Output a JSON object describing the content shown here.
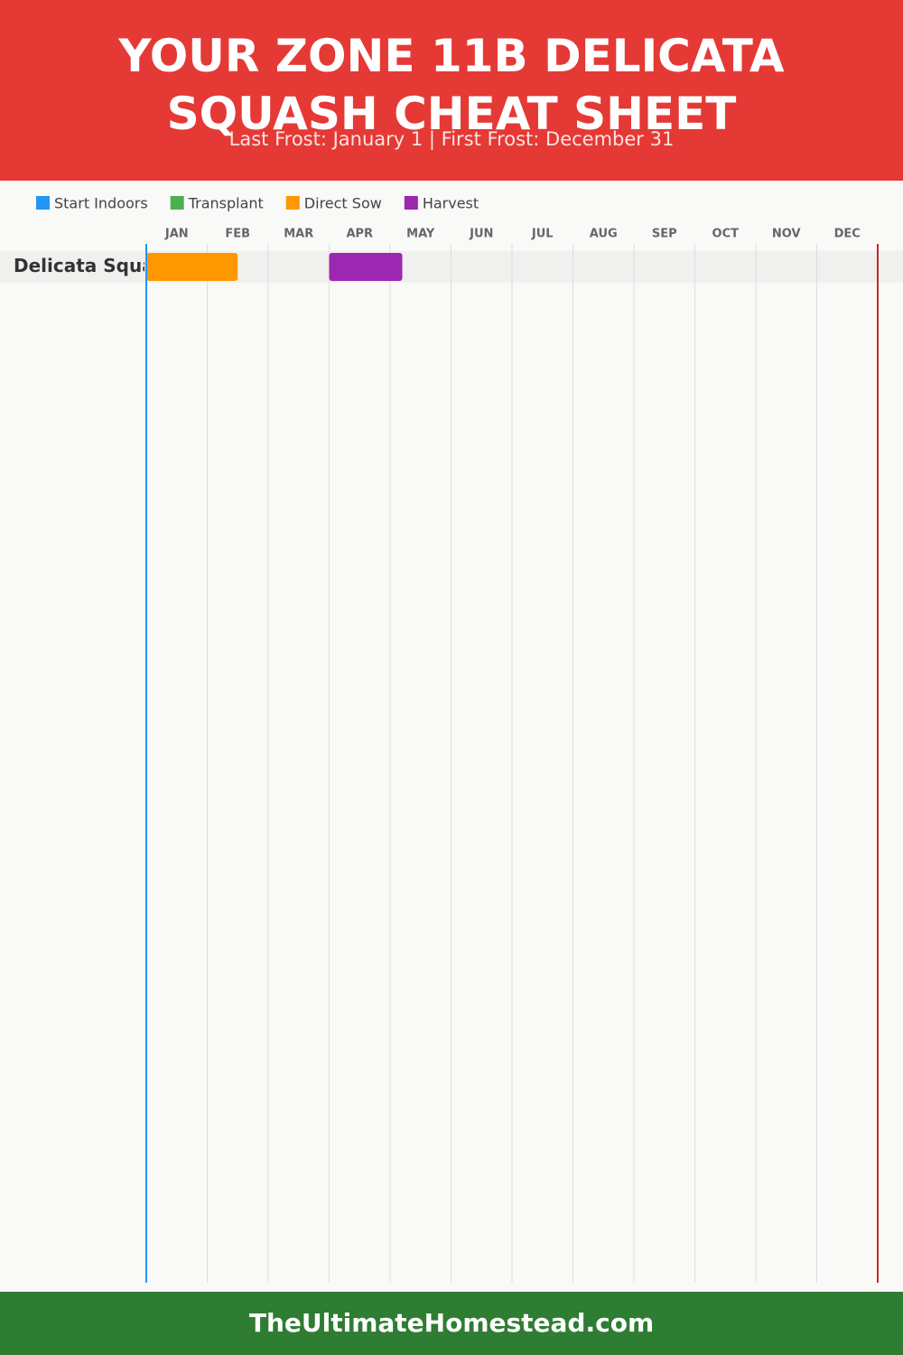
{
  "chart_data": {
    "type": "gantt",
    "title": "YOUR ZONE 11B DELICATA SQUASH CHEAT SHEET",
    "subtitle": "Last Frost: January 1 | First Frost: December 31",
    "categories": [
      "Delicata Squash"
    ],
    "series": [
      {
        "name": "Start Indoors",
        "color": "#2196f3",
        "values": [
          null
        ]
      },
      {
        "name": "Transplant",
        "color": "#4caf50",
        "values": [
          null
        ]
      },
      {
        "name": "Direct Sow",
        "color": "#ff9800",
        "values": [
          [
            0,
            1.5
          ]
        ]
      },
      {
        "name": "Harvest",
        "color": "#9c27b0",
        "values": [
          [
            3,
            4.2
          ]
        ]
      }
    ],
    "xlim": [
      0,
      12
    ],
    "xticks": [
      {
        "value": 0,
        "label": "JAN"
      },
      {
        "value": 1,
        "label": "FEB"
      },
      {
        "value": 2,
        "label": "MAR"
      },
      {
        "value": 3,
        "label": "APR"
      },
      {
        "value": 4,
        "label": "MAY"
      },
      {
        "value": 5,
        "label": "JUN"
      },
      {
        "value": 6,
        "label": "JUL"
      },
      {
        "value": 7,
        "label": "AUG"
      },
      {
        "value": 8,
        "label": "SEP"
      },
      {
        "value": 9,
        "label": "OCT"
      },
      {
        "value": 10,
        "label": "NOV"
      },
      {
        "value": 11,
        "label": "DEC"
      }
    ],
    "grid": true,
    "frost_lines": [
      {
        "value": 0,
        "color": "#2196f3"
      },
      {
        "value": 12,
        "color": "#c62828"
      }
    ]
  },
  "footer": "TheUltimateHomestead.com"
}
